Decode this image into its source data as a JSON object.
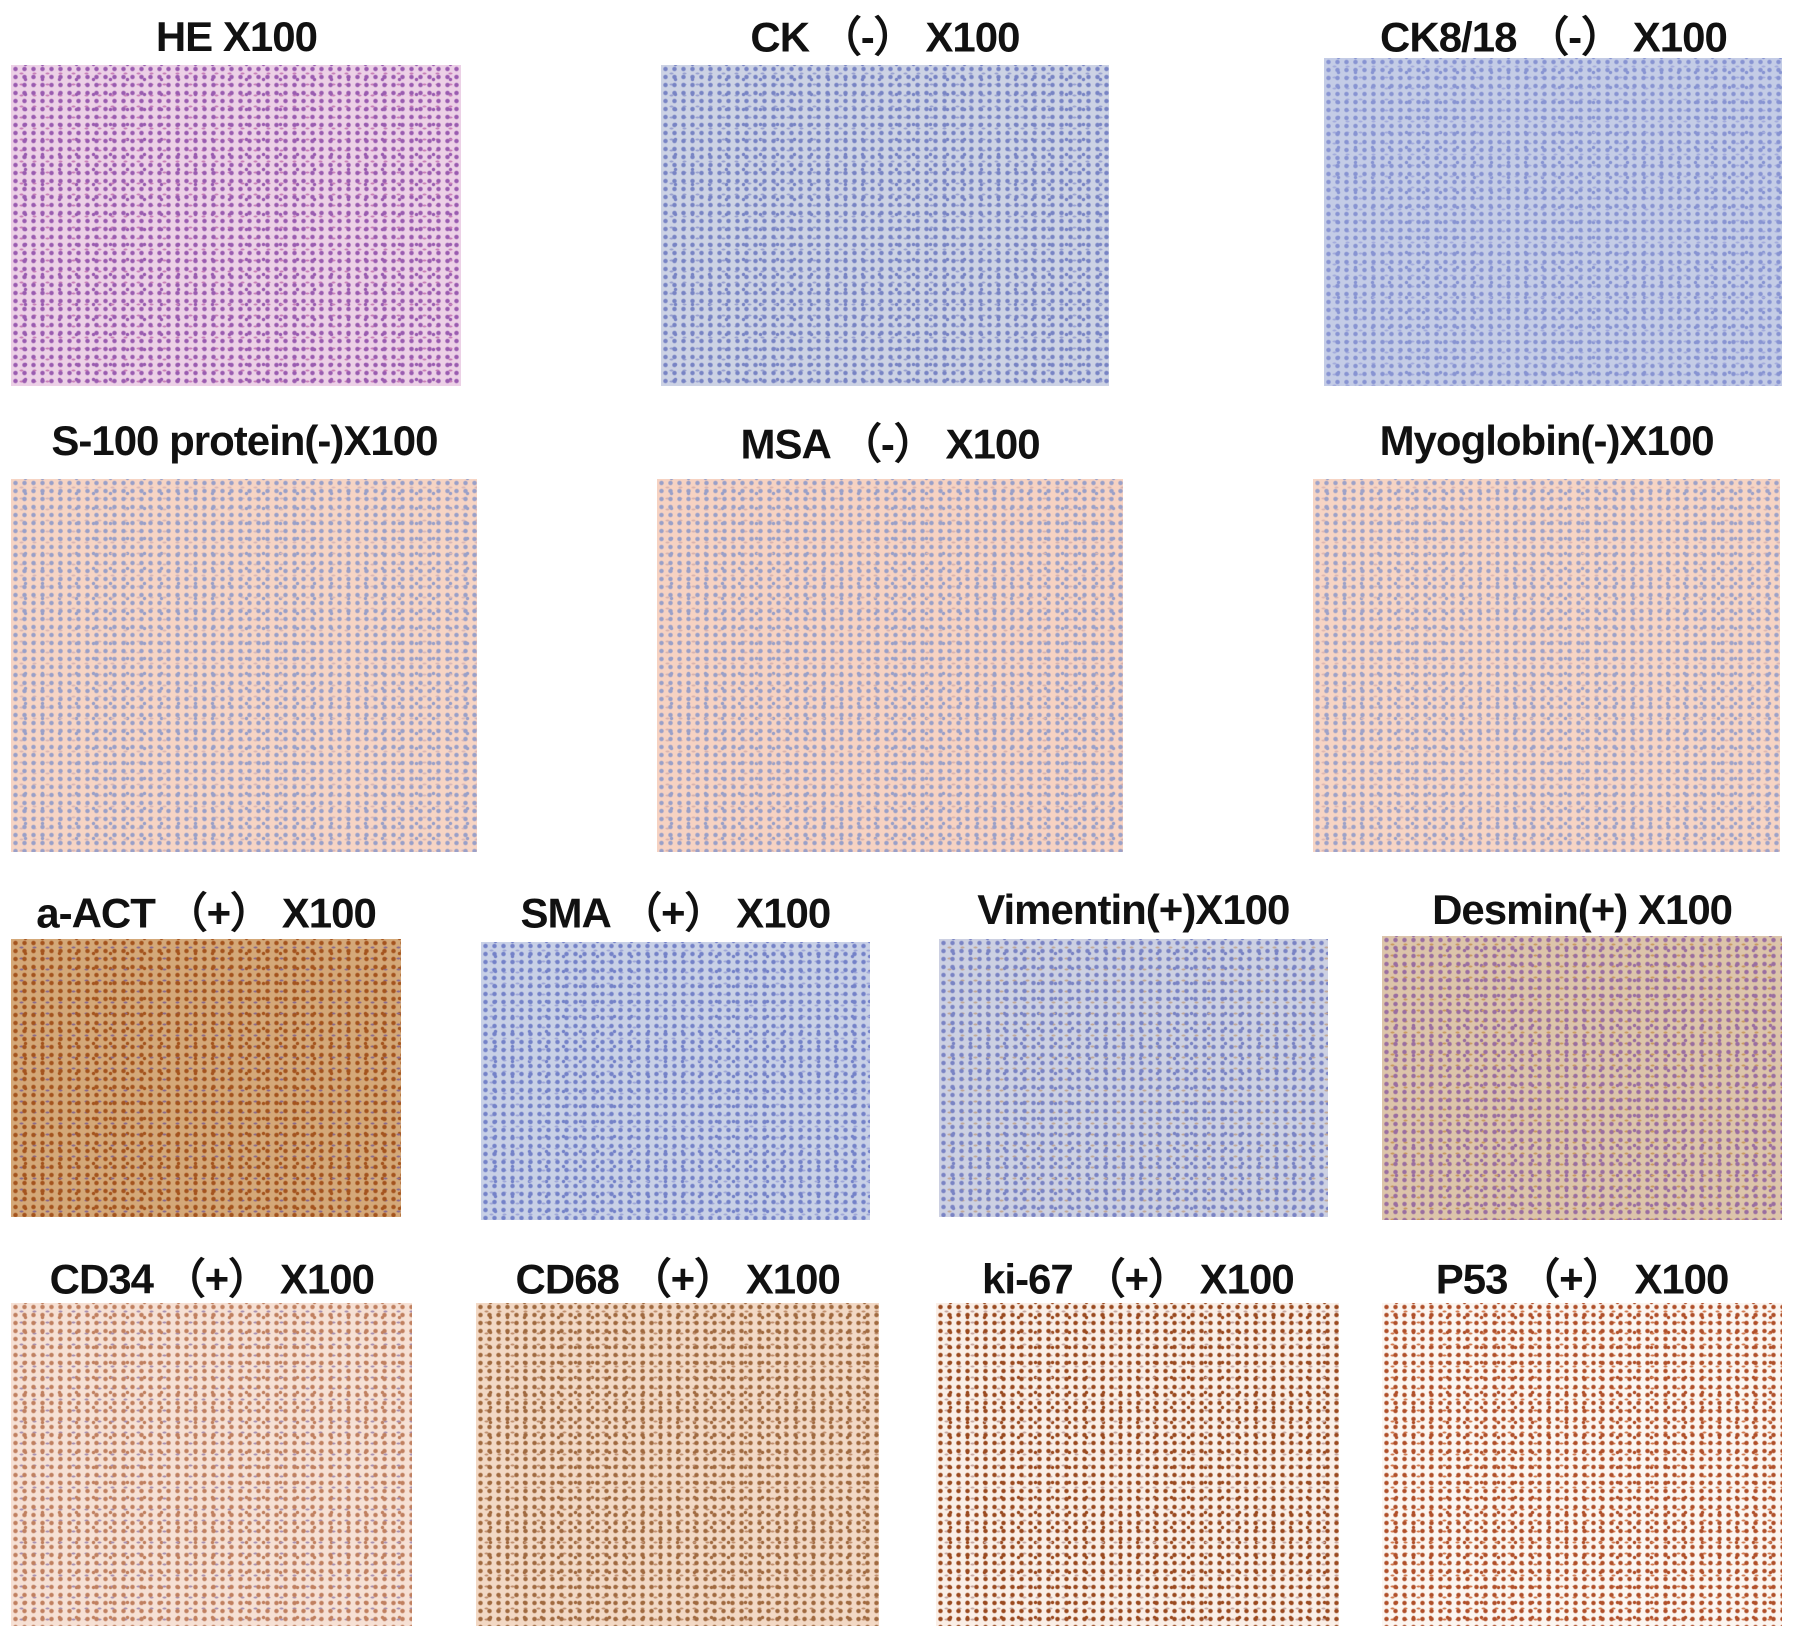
{
  "panels": [
    {
      "label": "HE X100"
    },
    {
      "label": "CK （-） X100"
    },
    {
      "label": "CK8/18 （-） X100"
    },
    {
      "label": "S-100 protein(-)X100"
    },
    {
      "label": "MSA （-） X100"
    },
    {
      "label": "Myoglobin(-)X100"
    },
    {
      "label": "a-ACT （+） X100"
    },
    {
      "label": "SMA （+） X100"
    },
    {
      "label": "Vimentin(+)X100"
    },
    {
      "label": "Desmin(+) X100"
    },
    {
      "label": "CD34 （+） X100"
    },
    {
      "label": "CD68 （+） X100"
    },
    {
      "label": "ki-67 （+） X100"
    },
    {
      "label": "P53 （+） X100"
    }
  ]
}
